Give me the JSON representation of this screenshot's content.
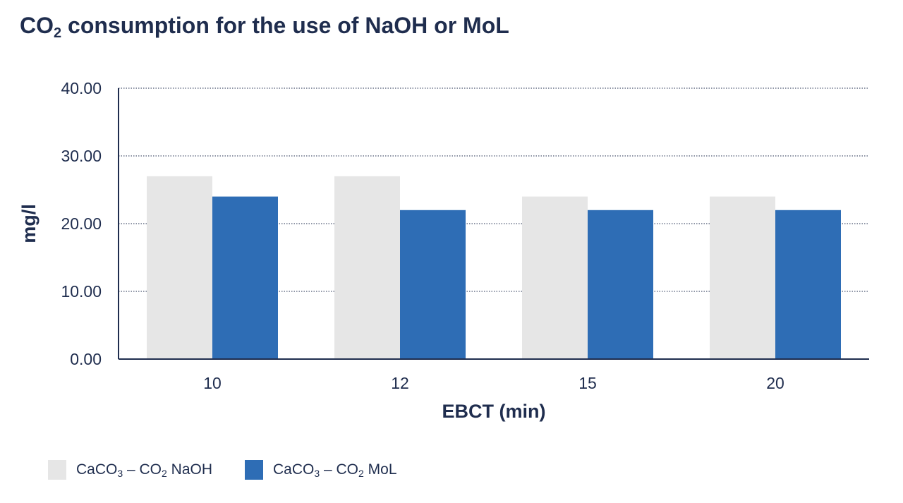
{
  "colors": {
    "text": "#1f2d4e",
    "series_naoh": "#e6e6e6",
    "series_mol": "#2e6db5",
    "axis": "#1f2d4e",
    "grid": "#1f2d4e"
  },
  "chart_data": {
    "type": "bar",
    "title": {
      "prefix": "CO",
      "sub": "2",
      "suffix": " consumption for the use of NaOH or MoL"
    },
    "xlabel": "EBCT (min)",
    "ylabel": "mg/l",
    "categories": [
      "10",
      "12",
      "15",
      "20"
    ],
    "ylim": [
      0,
      40
    ],
    "yticks": [
      "0.00",
      "10.00",
      "20.00",
      "30.00",
      "40.00"
    ],
    "grid": "dotted-horizontal",
    "legend_placement": "bottom-left",
    "series": [
      {
        "name": "CaCO3 – CO2 NaOH",
        "label_parts": {
          "a": "CaCO",
          "a_sub": "3",
          "b": " – CO",
          "b_sub": "2",
          "c": " NaOH"
        },
        "color_key": "series_naoh",
        "values": [
          27,
          27,
          24,
          24
        ]
      },
      {
        "name": "CaCO3 – CO2 MoL",
        "label_parts": {
          "a": "CaCO",
          "a_sub": "3",
          "b": " – CO",
          "b_sub": "2",
          "c": " MoL"
        },
        "color_key": "series_mol",
        "values": [
          24,
          22,
          22,
          22
        ]
      }
    ]
  }
}
